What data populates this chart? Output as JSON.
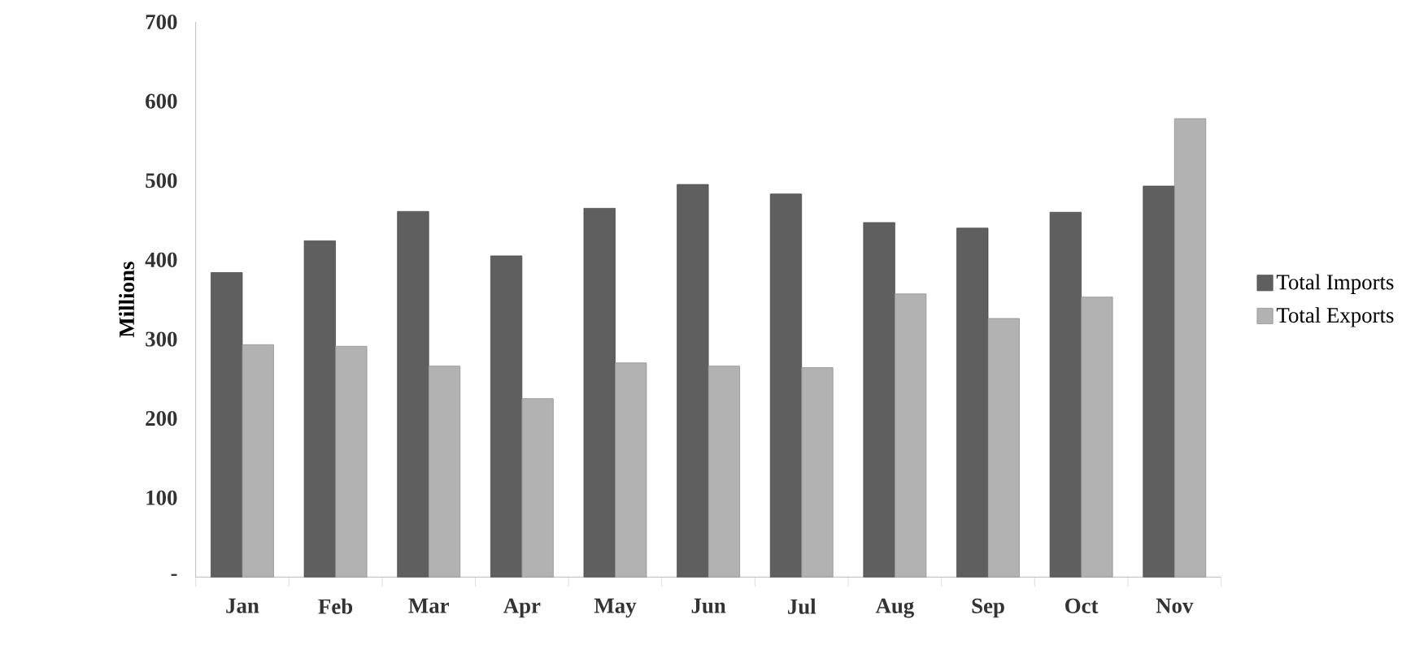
{
  "chart_data": {
    "type": "bar",
    "ylabel": "Millions",
    "categories": [
      "Jan",
      "Feb",
      "Mar",
      "Apr",
      "May",
      "Jun",
      "Jul",
      "Aug",
      "Sep",
      "Oct",
      "Nov"
    ],
    "series": [
      {
        "name": "Total Imports",
        "color": "#5f5f5f",
        "values": [
          384,
          424,
          461,
          405,
          465,
          495,
          483,
          447,
          440,
          460,
          493
        ]
      },
      {
        "name": "Total Exports",
        "color": "#b2b2b2",
        "values": [
          293,
          291,
          266,
          225,
          270,
          266,
          264,
          357,
          326,
          353,
          578
        ]
      }
    ],
    "ylim": [
      0,
      700
    ],
    "yticks": [
      {
        "value": 0,
        "label": "-"
      },
      100,
      200,
      300,
      400,
      500,
      600,
      700
    ],
    "grid": false,
    "legend": "right"
  }
}
